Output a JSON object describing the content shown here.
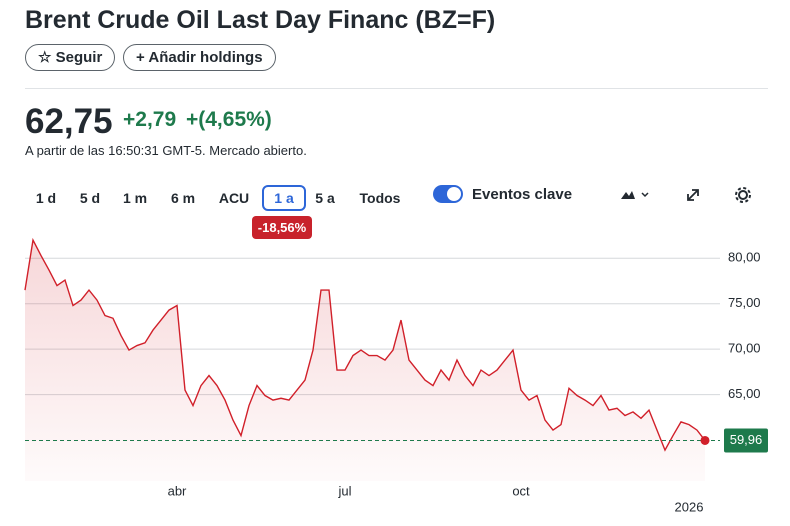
{
  "header": {
    "title": "Brent Crude Oil Last Day Financ (BZ=F)",
    "follow_button": "Seguir",
    "holdings_button": "Añadir holdings"
  },
  "quote": {
    "price": "62,75",
    "change": "+2,79",
    "change_percent": "+(4,65%)",
    "timestamp": "A partir de las 16:50:31 GMT-5. Mercado abierto."
  },
  "controls": {
    "ranges": [
      "1 d",
      "5 d",
      "1 m",
      "6 m",
      "ACU",
      "1 a",
      "5 a",
      "Todos"
    ],
    "active_range": "1 a",
    "range_change": "-18,56%",
    "key_events": "Eventos clave"
  },
  "chart_data": {
    "type": "line",
    "color": "#d1202a",
    "grid": true,
    "categories": [
      null,
      null,
      null,
      null,
      null,
      null,
      null,
      null,
      null,
      null,
      null,
      null,
      null,
      null,
      null,
      null,
      null,
      null,
      null,
      "abr",
      null,
      null,
      null,
      null,
      null,
      null,
      null,
      null,
      null,
      null,
      null,
      null,
      null,
      null,
      null,
      null,
      null,
      null,
      null,
      null,
      "jul",
      null,
      null,
      null,
      null,
      null,
      null,
      null,
      null,
      null,
      null,
      null,
      null,
      null,
      null,
      null,
      null,
      null,
      null,
      null,
      null,
      null,
      "oct",
      null,
      null,
      null,
      null,
      null,
      null,
      null,
      null,
      null,
      null,
      null,
      null,
      null,
      null,
      null,
      null,
      null,
      null,
      null,
      null,
      "2026",
      null,
      null
    ],
    "series": [
      {
        "name": "BZ=F",
        "color": "#d1202a",
        "values": [
          76.5,
          82,
          80.3,
          78.7,
          77,
          77.6,
          74.8,
          75.4,
          76.5,
          75.4,
          73.7,
          73.4,
          71.5,
          69.9,
          70.4,
          70.7,
          72.1,
          73.2,
          74.3,
          74.8,
          65.5,
          63.8,
          66,
          67.1,
          66,
          64.4,
          62.2,
          60.5,
          63.8,
          66,
          64.9,
          64.4,
          64.6,
          64.4,
          65.5,
          66.6,
          69.9,
          76.5,
          76.5,
          67.7,
          67.7,
          69.3,
          69.9,
          69.3,
          69.3,
          68.8,
          69.9,
          73.2,
          68.8,
          67.7,
          66.6,
          66,
          67.7,
          66.6,
          68.8,
          67.1,
          66,
          67.7,
          67.1,
          67.7,
          68.8,
          69.9,
          65.5,
          64.4,
          64.9,
          62.2,
          61.1,
          61.7,
          65.7,
          64.9,
          64.4,
          63.8,
          64.9,
          63.3,
          63.5,
          62.7,
          63.1,
          62.4,
          63.3,
          61.1,
          58.9,
          60.5,
          62,
          61.7,
          61.1,
          59.96
        ],
        "value_labels": [
          null,
          null,
          null,
          null,
          null,
          null,
          null,
          null,
          null,
          null,
          null,
          null,
          null,
          null,
          null,
          null,
          null,
          null,
          null,
          null,
          null,
          null,
          null,
          null,
          null,
          null,
          null,
          null,
          null,
          null,
          null,
          null,
          null,
          null,
          null,
          null,
          null,
          null,
          null,
          null,
          null,
          null,
          null,
          null,
          null,
          null,
          null,
          null,
          null,
          null,
          null,
          null,
          null,
          null,
          null,
          null,
          null,
          null,
          null,
          null,
          null,
          null,
          null,
          null,
          null,
          null,
          null,
          null,
          null,
          null,
          null,
          null,
          null,
          null,
          null,
          null,
          null,
          null,
          null,
          null,
          null,
          null,
          null,
          null,
          null,
          "59,96"
        ]
      }
    ],
    "ylim": [
      55.5,
      83
    ],
    "yticks": [
      {
        "value": 65,
        "label": "65,00"
      },
      {
        "value": 70,
        "label": "70,00"
      },
      {
        "value": 75,
        "label": "75,00"
      },
      {
        "value": 80,
        "label": "80,00"
      }
    ]
  }
}
